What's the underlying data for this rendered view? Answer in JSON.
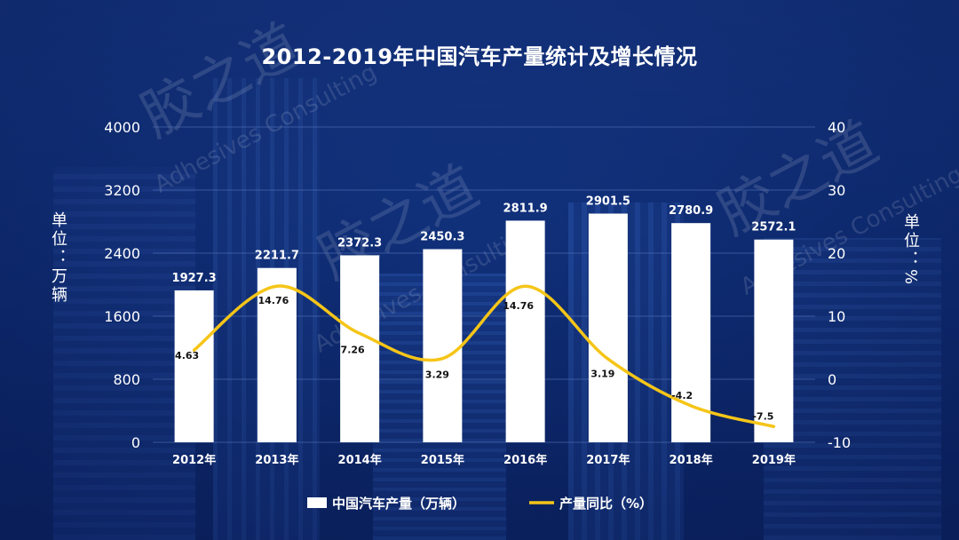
{
  "chart_data": {
    "type": "bar",
    "title": "2012-2019年中国汽车产量统计及增长情况",
    "categories": [
      "2012年",
      "2013年",
      "2014年",
      "2015年",
      "2016年",
      "2017年",
      "2018年",
      "2019年"
    ],
    "series": [
      {
        "name": "中国汽车产量（万辆）",
        "type": "bar",
        "axis": "left",
        "values": [
          1927.3,
          2211.7,
          2372.3,
          2450.3,
          2811.9,
          2901.5,
          2780.9,
          2572.1
        ],
        "labels": [
          "1927.3",
          "2211.7",
          "2372.3",
          "2450.3",
          "2811.9",
          "2901.5",
          "2780.9",
          "2572.1"
        ]
      },
      {
        "name": "产量同比（%）",
        "type": "line",
        "axis": "right",
        "values": [
          4.63,
          14.76,
          7.26,
          3.29,
          14.76,
          3.19,
          -4.2,
          -7.5
        ],
        "labels": [
          "4.63",
          "14.76",
          "7.26",
          "3.29",
          "14.76",
          "3.19",
          "-4.2",
          "-7.5"
        ]
      }
    ],
    "y_left": {
      "label": "单位：万辆",
      "ylim": [
        0,
        4000
      ],
      "ticks": [
        "0",
        "800",
        "1600",
        "2400",
        "3200",
        "4000"
      ]
    },
    "y_right": {
      "label": "单位：%",
      "ylim": [
        -10,
        40
      ],
      "ticks": [
        "-10",
        "0",
        "10",
        "20",
        "30",
        "40"
      ]
    },
    "grid": true,
    "legend_position": "bottom-center"
  },
  "watermarks": {
    "cn": "胶之道",
    "en": "Adhesives Consulting"
  },
  "colors": {
    "bar": "#ffffff",
    "line": "#f5c518",
    "grid": "#5574b8",
    "text": "#ffffff",
    "line_label": "#111111"
  }
}
